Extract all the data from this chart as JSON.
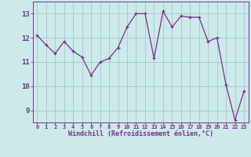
{
  "x": [
    0,
    1,
    2,
    3,
    4,
    5,
    6,
    7,
    8,
    9,
    10,
    11,
    12,
    13,
    14,
    15,
    16,
    17,
    18,
    19,
    20,
    21,
    22,
    23
  ],
  "y": [
    12.1,
    11.7,
    11.35,
    11.85,
    11.45,
    11.2,
    10.45,
    11.0,
    11.15,
    11.6,
    12.45,
    13.0,
    13.0,
    11.15,
    13.1,
    12.45,
    12.9,
    12.85,
    12.85,
    11.85,
    12.0,
    10.05,
    8.6,
    9.8
  ],
  "line_color": "#7b2d8b",
  "marker_color": "#7b2d8b",
  "bg_color": "#cceaea",
  "grid_color": "#aacccc",
  "xlabel": "Windchill (Refroidissement éolien,°C)",
  "ylabel": "",
  "ylim": [
    8.5,
    13.5
  ],
  "yticks": [
    9,
    10,
    11,
    12,
    13
  ],
  "xticks": [
    0,
    1,
    2,
    3,
    4,
    5,
    6,
    7,
    8,
    9,
    10,
    11,
    12,
    13,
    14,
    15,
    16,
    17,
    18,
    19,
    20,
    21,
    22,
    23
  ],
  "xtick_labels": [
    "0",
    "1",
    "2",
    "3",
    "4",
    "5",
    "6",
    "7",
    "8",
    "9",
    "10",
    "11",
    "12",
    "13",
    "14",
    "15",
    "16",
    "17",
    "18",
    "19",
    "20",
    "21",
    "22",
    "23"
  ],
  "font_color": "#7b2d8b",
  "marker_size": 2.5,
  "linewidth": 0.9
}
